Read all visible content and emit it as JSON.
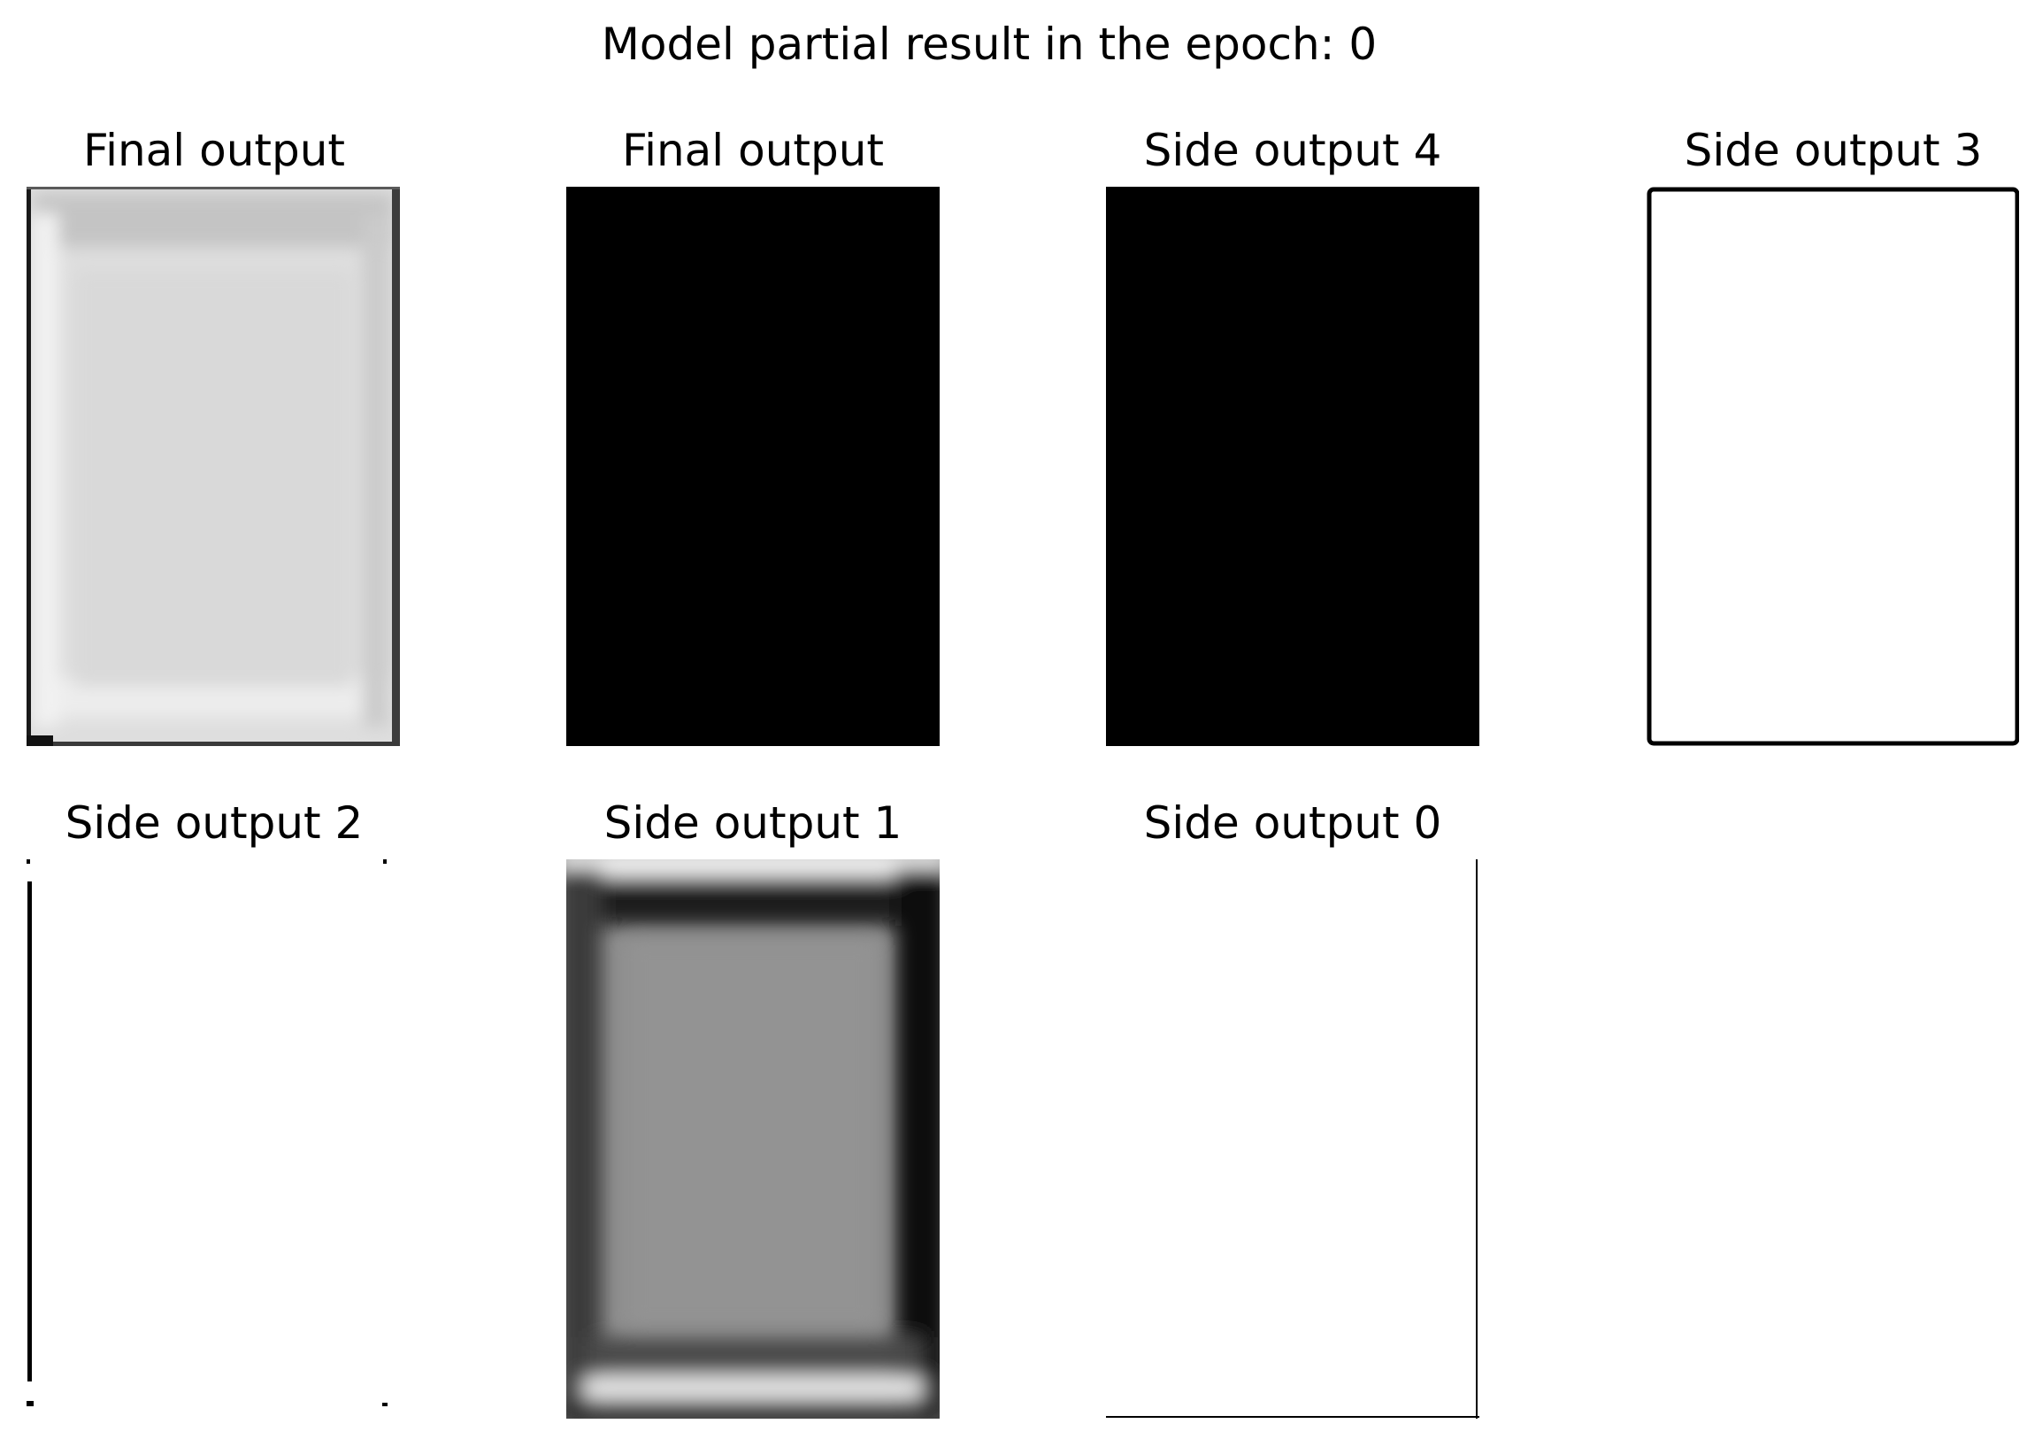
{
  "figure": {
    "title": "Model partial result in the epoch: 0"
  },
  "panels": [
    {
      "title": "Final output",
      "rendering": "light-gray-blurred-frame"
    },
    {
      "title": "Final output",
      "rendering": "solid-black"
    },
    {
      "title": "Side output 4",
      "rendering": "solid-black"
    },
    {
      "title": "Side output 3",
      "rendering": "white-with-black-border"
    },
    {
      "title": "Side output 2",
      "rendering": "white-with-left-edge-and-corner-dots"
    },
    {
      "title": "Side output 1",
      "rendering": "mid-gray-with-dark-blurred-border"
    },
    {
      "title": "Side output 0",
      "rendering": "white-with-right-and-bottom-edge"
    }
  ],
  "colors": {
    "background": "#ffffff",
    "black": "#000000",
    "light_gray": "#dcdcdc",
    "mid_gray": "#8f8f8f"
  }
}
